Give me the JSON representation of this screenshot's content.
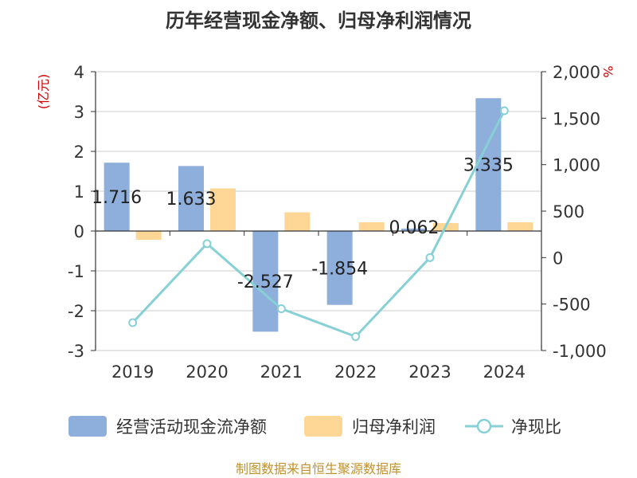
{
  "chart_data": {
    "type": "bar",
    "title": "历年经营现金净额、归母净利润情况",
    "categories": [
      "2019",
      "2020",
      "2021",
      "2022",
      "2023",
      "2024"
    ],
    "series": [
      {
        "name": "经营活动现金流净额",
        "type": "bar",
        "axis": "left",
        "color": "#8eaedb",
        "values": [
          1.716,
          1.633,
          -2.527,
          -1.854,
          0.062,
          3.335
        ],
        "labels": [
          "1.716",
          "1.633",
          "-2.527",
          "-1.854",
          "0.062",
          "3.335"
        ]
      },
      {
        "name": "归母净利润",
        "type": "bar",
        "axis": "left",
        "color": "#fed796",
        "values": [
          -0.22,
          1.07,
          0.47,
          0.22,
          0.2,
          0.22
        ]
      },
      {
        "name": "净现比",
        "type": "line",
        "axis": "right",
        "color": "#86d0d6",
        "values": [
          -700,
          150,
          -550,
          -850,
          0,
          1580
        ]
      }
    ],
    "yleft": {
      "label": "(亿元)",
      "min": -3,
      "max": 4,
      "ticks": [
        "-3",
        "-2",
        "-1",
        "0",
        "1",
        "2",
        "3",
        "4"
      ]
    },
    "yright": {
      "label": "%",
      "min": -1000,
      "max": 2000,
      "ticks": [
        "-1,000",
        "-500",
        "0",
        "500",
        "1,000",
        "1,500",
        "2,000"
      ]
    },
    "legend": [
      "经营活动现金流净额",
      "归母净利润",
      "净现比"
    ],
    "source": "制图数据来自恒生聚源数据库"
  }
}
